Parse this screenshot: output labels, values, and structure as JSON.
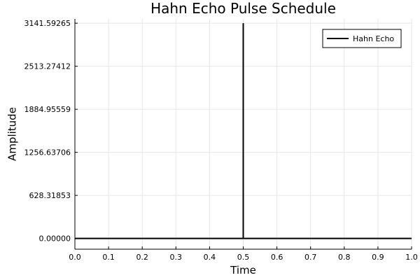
{
  "chart_data": {
    "type": "line",
    "title": "Hahn Echo Pulse Schedule",
    "xlabel": "Time",
    "ylabel": "Amplitude",
    "xlim": [
      0.0,
      1.0
    ],
    "ylim": [
      -157.0796,
      3204.4245
    ],
    "xticks": [
      0.0,
      0.1,
      0.2,
      0.3,
      0.4,
      0.5,
      0.6,
      0.7,
      0.8,
      0.9,
      1.0
    ],
    "xtick_labels": [
      "0.0",
      "0.1",
      "0.2",
      "0.3",
      "0.4",
      "0.5",
      "0.6",
      "0.7",
      "0.8",
      "0.9",
      "1.0"
    ],
    "yticks": [
      0.0,
      628.31853,
      1256.63706,
      1884.95559,
      2513.27412,
      3141.59265
    ],
    "ytick_labels": [
      "0.00000",
      "628.31853",
      "1256.63706",
      "1884.95559",
      "2513.27412",
      "3141.59265"
    ],
    "grid": true,
    "legend_position": "top-right",
    "series": [
      {
        "name": "Hahn Echo",
        "color": "#000000",
        "x": [
          0.0,
          0.5,
          0.5,
          0.5,
          1.0
        ],
        "y": [
          0.0,
          0.0,
          3141.59265,
          0.0,
          0.0
        ]
      }
    ]
  }
}
